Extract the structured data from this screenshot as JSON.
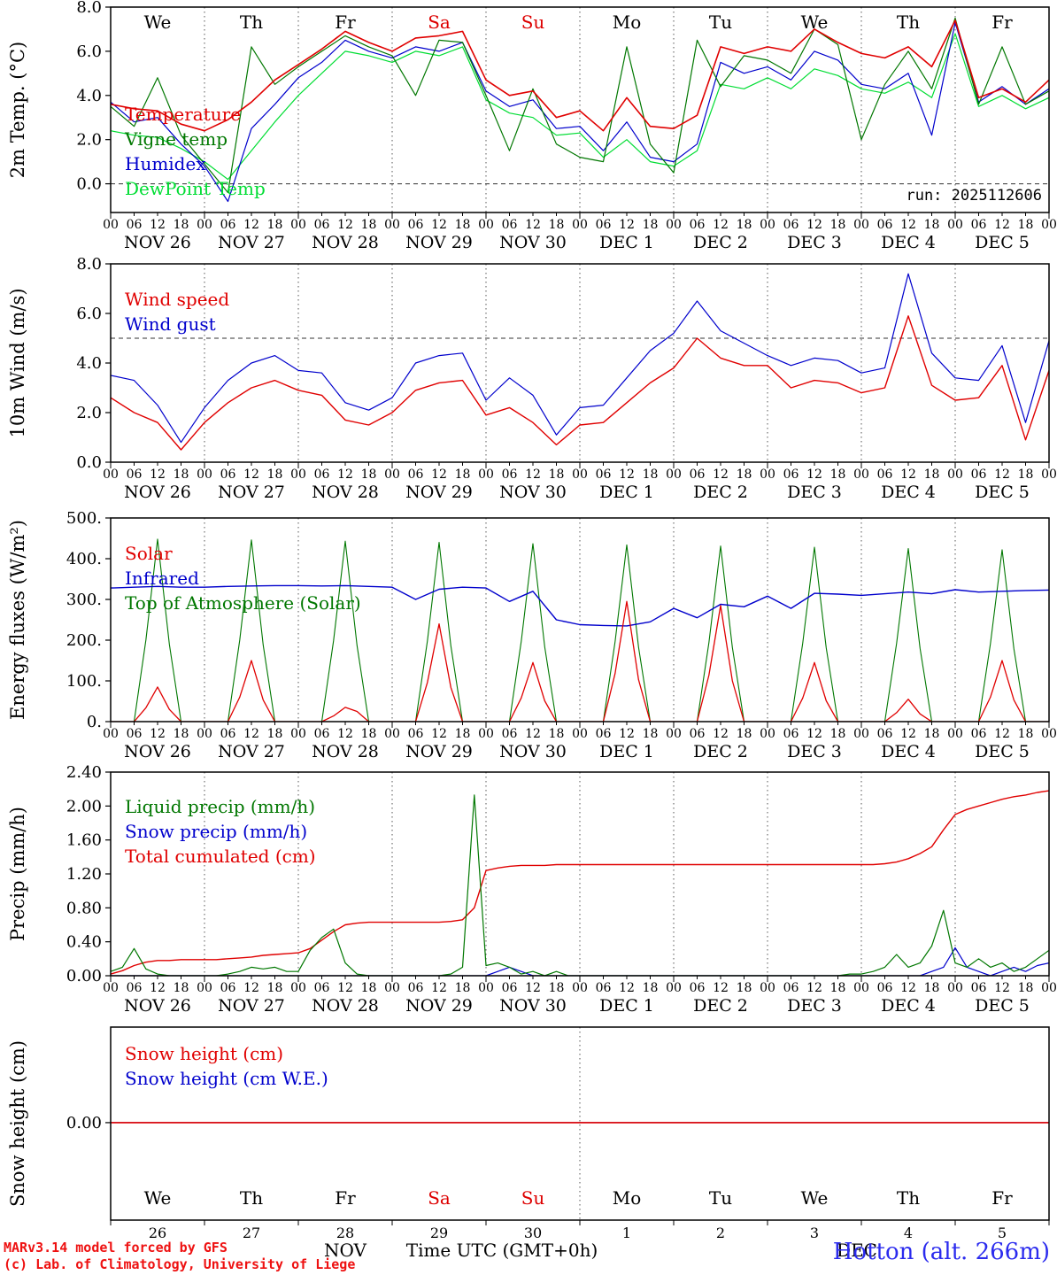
{
  "run_label": "run: 2025112606",
  "footer": {
    "model_line1": "MARv3.14 model forced by GFS",
    "model_line2": "(c) Lab. of Climatology, University of Liege",
    "station": "Hotton (alt. 266m)",
    "time_axis_label": "Time UTC (GMT+0h)",
    "month_left": "NOV",
    "month_right": "DEC",
    "accent_red": "#dd0000",
    "accent_blue": "#2b2bee"
  },
  "axis": {
    "hour_labels": [
      "00",
      "06",
      "12",
      "18"
    ],
    "end_hour_label": "00",
    "date_labels": [
      "NOV 26",
      "NOV 27",
      "NOV 28",
      "NOV 29",
      "NOV 30",
      "DEC 1",
      "DEC 2",
      "DEC 3",
      "DEC 4",
      "DEC 5"
    ],
    "day_names": [
      "We",
      "Th",
      "Fr",
      "Sa",
      "Su",
      "Mo",
      "Tu",
      "We",
      "Th",
      "Fr"
    ],
    "day_numbers": [
      "26",
      "27",
      "28",
      "29",
      "30",
      "1",
      "2",
      "3",
      "4",
      "5"
    ],
    "weekend_indices": [
      3,
      4
    ],
    "total_hours": 240
  },
  "chart_data": [
    {
      "id": "temperature",
      "type": "line",
      "ylabel": "2m Temp. (°C)",
      "ylim": [
        -1.3,
        8.0
      ],
      "yticks": [
        8,
        6,
        4,
        2,
        0
      ],
      "ytick_labels": [
        "8.0",
        "6.0",
        "4.0",
        "2.0",
        "0.0"
      ],
      "hlines": [
        0
      ],
      "grid_days": "all",
      "xaxis": "hours",
      "show_top_day_names": true,
      "show_run_label": true,
      "series": [
        {
          "name": "Temperature",
          "color": "#e00000",
          "width": 1.6,
          "step_hours": 6,
          "values": [
            3.6,
            3.4,
            3.3,
            2.7,
            2.4,
            2.9,
            3.7,
            4.7,
            5.4,
            6.1,
            6.9,
            6.4,
            6.0,
            6.6,
            6.7,
            6.9,
            4.7,
            4.0,
            4.2,
            3.0,
            3.3,
            2.4,
            3.9,
            2.6,
            2.5,
            3.1,
            6.2,
            5.9,
            6.2,
            6.0,
            7.0,
            6.4,
            5.9,
            5.7,
            6.2,
            5.3,
            7.4,
            3.9,
            4.3,
            3.7,
            4.7
          ]
        },
        {
          "name": "Vigne temp",
          "color": "#007700",
          "width": 1.2,
          "step_hours": 6,
          "values": [
            3.5,
            2.6,
            4.8,
            2.2,
            0.9,
            -0.4,
            6.2,
            4.5,
            5.3,
            6.0,
            6.7,
            6.2,
            5.8,
            4.0,
            6.5,
            6.4,
            4.0,
            1.5,
            4.3,
            1.8,
            1.2,
            1.0,
            6.2,
            1.8,
            0.5,
            6.5,
            4.4,
            5.8,
            5.6,
            5.0,
            7.0,
            6.3,
            2.0,
            4.5,
            6.0,
            4.3,
            7.5,
            3.6,
            6.2,
            3.6,
            4.2
          ]
        },
        {
          "name": "Humidex",
          "color": "#0000cc",
          "width": 1.2,
          "step_hours": 6,
          "values": [
            3.7,
            2.8,
            3.0,
            1.8,
            0.8,
            -0.8,
            2.5,
            3.6,
            4.8,
            5.5,
            6.5,
            6.0,
            5.7,
            6.2,
            6.0,
            6.4,
            4.2,
            3.5,
            3.8,
            2.5,
            2.6,
            1.5,
            2.8,
            1.2,
            1.0,
            1.8,
            5.5,
            5.0,
            5.3,
            4.7,
            6.0,
            5.6,
            4.5,
            4.3,
            5.0,
            2.2,
            7.3,
            3.7,
            4.4,
            3.6,
            4.3
          ]
        },
        {
          "name": "DewPoint Temp",
          "color": "#00dd33",
          "width": 1.2,
          "step_hours": 6,
          "values": [
            2.4,
            2.2,
            2.1,
            1.6,
            1.0,
            0.2,
            1.5,
            2.8,
            4.0,
            5.0,
            6.0,
            5.8,
            5.5,
            6.0,
            5.8,
            6.2,
            3.8,
            3.2,
            3.0,
            2.2,
            2.3,
            1.2,
            2.0,
            1.0,
            0.8,
            1.5,
            4.5,
            4.3,
            4.8,
            4.3,
            5.2,
            4.9,
            4.3,
            4.1,
            4.6,
            3.9,
            6.8,
            3.5,
            4.0,
            3.4,
            3.9
          ]
        }
      ]
    },
    {
      "id": "wind",
      "type": "line",
      "ylabel": "10m Wind (m/s)",
      "ylim": [
        0,
        8.0
      ],
      "yticks": [
        8,
        6,
        4,
        2,
        0
      ],
      "ytick_labels": [
        "8.0",
        "6.0",
        "4.0",
        "2.0",
        "0.0"
      ],
      "hlines": [
        5
      ],
      "grid_days": "all",
      "xaxis": "hours",
      "series": [
        {
          "name": "Wind speed",
          "color": "#e00000",
          "width": 1.4,
          "step_hours": 6,
          "values": [
            2.6,
            2.0,
            1.6,
            0.5,
            1.6,
            2.4,
            3.0,
            3.3,
            2.9,
            2.7,
            1.7,
            1.5,
            2.0,
            2.9,
            3.2,
            3.3,
            1.9,
            2.2,
            1.6,
            0.7,
            1.5,
            1.6,
            2.4,
            3.2,
            3.8,
            5.0,
            4.2,
            3.9,
            3.9,
            3.0,
            3.3,
            3.2,
            2.8,
            3.0,
            5.9,
            3.1,
            2.5,
            2.6,
            3.9,
            0.9,
            3.7
          ]
        },
        {
          "name": "Wind gust",
          "color": "#0000cc",
          "width": 1.2,
          "step_hours": 6,
          "values": [
            3.5,
            3.3,
            2.3,
            0.8,
            2.2,
            3.3,
            4.0,
            4.3,
            3.7,
            3.6,
            2.4,
            2.1,
            2.6,
            4.0,
            4.3,
            4.4,
            2.5,
            3.4,
            2.7,
            1.1,
            2.2,
            2.3,
            3.4,
            4.5,
            5.2,
            6.5,
            5.3,
            4.8,
            4.3,
            3.9,
            4.2,
            4.1,
            3.6,
            3.8,
            7.6,
            4.4,
            3.4,
            3.3,
            4.7,
            1.6,
            4.9
          ]
        }
      ]
    },
    {
      "id": "energy-fluxes",
      "type": "line",
      "ylabel": "Energy fluxes (W/m²)",
      "ylim": [
        0,
        500
      ],
      "yticks": [
        500,
        400,
        300,
        200,
        100,
        0
      ],
      "ytick_labels": [
        "500.",
        "400.",
        "300.",
        "200.",
        "100.",
        "0."
      ],
      "hlines": [],
      "grid_days": "all",
      "xaxis": "hours",
      "series": [
        {
          "name": "Solar",
          "color": "#e00000",
          "width": 1.3,
          "step_hours": 3,
          "values": [
            0,
            0,
            0,
            34,
            85,
            30,
            0,
            0,
            0,
            0,
            0,
            60,
            150,
            53,
            0,
            0,
            0,
            0,
            0,
            14,
            35,
            25,
            0,
            0,
            0,
            0,
            0,
            96,
            240,
            84,
            0,
            0,
            0,
            0,
            0,
            58,
            145,
            51,
            0,
            0,
            0,
            0,
            0,
            118,
            295,
            103,
            0,
            0,
            0,
            0,
            0,
            114,
            285,
            100,
            0,
            0,
            0,
            0,
            0,
            58,
            145,
            51,
            0,
            0,
            0,
            0,
            0,
            22,
            55,
            19,
            0,
            0,
            0,
            0,
            0,
            60,
            150,
            53,
            0,
            0,
            0
          ]
        },
        {
          "name": "Infrared",
          "color": "#0000cc",
          "width": 1.4,
          "step_hours": 6,
          "values": [
            328,
            330,
            332,
            330,
            330,
            332,
            333,
            334,
            334,
            333,
            334,
            332,
            330,
            300,
            325,
            330,
            328,
            295,
            320,
            250,
            238,
            236,
            235,
            245,
            278,
            255,
            288,
            282,
            308,
            278,
            315,
            313,
            310,
            314,
            318,
            314,
            324,
            318,
            320,
            322,
            323
          ]
        },
        {
          "name": "Top of Atmosphere (Solar)",
          "color": "#007700",
          "width": 1.1,
          "step_hours": 3,
          "values": [
            0,
            0,
            0,
            200,
            448,
            190,
            0,
            0,
            0,
            0,
            0,
            200,
            446,
            188,
            0,
            0,
            0,
            0,
            0,
            199,
            443,
            187,
            0,
            0,
            0,
            0,
            0,
            198,
            440,
            186,
            0,
            0,
            0,
            0,
            0,
            197,
            437,
            184,
            0,
            0,
            0,
            0,
            0,
            196,
            434,
            183,
            0,
            0,
            0,
            0,
            0,
            194,
            431,
            182,
            0,
            0,
            0,
            0,
            0,
            193,
            428,
            181,
            0,
            0,
            0,
            0,
            0,
            192,
            425,
            180,
            0,
            0,
            0,
            0,
            0,
            191,
            422,
            179,
            0,
            0,
            0
          ]
        }
      ]
    },
    {
      "id": "precip",
      "type": "line",
      "ylabel": "Precip (mm/h)",
      "ylim": [
        0,
        2.4
      ],
      "yticks": [
        2.4,
        2.0,
        1.6,
        1.2,
        0.8,
        0.4,
        0
      ],
      "ytick_labels": [
        "2.40",
        "2.00",
        "1.60",
        "1.20",
        "0.80",
        "0.40",
        "0.00"
      ],
      "hlines": [],
      "grid_days": "all",
      "xaxis": "hours",
      "series": [
        {
          "name": "Liquid precip (mm/h)",
          "color": "#007700",
          "width": 1.2,
          "step_hours": 3,
          "values": [
            0.05,
            0.1,
            0.32,
            0.08,
            0.02,
            0,
            0,
            0,
            0,
            0,
            0.02,
            0.05,
            0.1,
            0.08,
            0.1,
            0.05,
            0.05,
            0.3,
            0.45,
            0.55,
            0.15,
            0.02,
            0,
            0,
            0,
            0,
            0,
            0,
            0,
            0.02,
            0.1,
            2.13,
            0.12,
            0.15,
            0.1,
            0.02,
            0.05,
            0,
            0.05,
            0,
            0,
            0,
            0,
            0,
            0,
            0,
            0,
            0,
            0,
            0,
            0,
            0,
            0,
            0,
            0,
            0,
            0,
            0,
            0,
            0,
            0,
            0,
            0,
            0.02,
            0.02,
            0.05,
            0.1,
            0.25,
            0.1,
            0.15,
            0.35,
            0.77,
            0.15,
            0.1,
            0.2,
            0.1,
            0.15,
            0.05,
            0.1,
            0.2,
            0.3
          ]
        },
        {
          "name": "Snow precip (mm/h)",
          "color": "#0000cc",
          "width": 1.2,
          "step_hours": 3,
          "values": [
            0,
            0,
            0,
            0,
            0,
            0,
            0,
            0,
            0,
            0,
            0,
            0,
            0,
            0,
            0,
            0,
            0,
            0,
            0,
            0,
            0,
            0,
            0,
            0,
            0,
            0,
            0,
            0,
            0,
            0,
            0,
            0,
            0,
            0.05,
            0.1,
            0.05,
            0,
            0,
            0,
            0,
            0,
            0,
            0,
            0,
            0,
            0,
            0,
            0,
            0,
            0,
            0,
            0,
            0,
            0,
            0,
            0,
            0,
            0,
            0,
            0,
            0,
            0,
            0,
            0,
            0,
            0,
            0,
            0,
            0,
            0,
            0.05,
            0.1,
            0.33,
            0.1,
            0.05,
            0,
            0.05,
            0.1,
            0.05,
            0.12,
            0.15
          ]
        },
        {
          "name": "Total cumulated (cm)",
          "color": "#e00000",
          "width": 1.4,
          "step_hours": 3,
          "values": [
            0.02,
            0.06,
            0.12,
            0.16,
            0.18,
            0.18,
            0.19,
            0.19,
            0.19,
            0.19,
            0.2,
            0.21,
            0.22,
            0.24,
            0.25,
            0.26,
            0.27,
            0.32,
            0.42,
            0.52,
            0.6,
            0.62,
            0.63,
            0.63,
            0.63,
            0.63,
            0.63,
            0.63,
            0.63,
            0.64,
            0.66,
            0.8,
            1.24,
            1.27,
            1.29,
            1.3,
            1.3,
            1.3,
            1.31,
            1.31,
            1.31,
            1.31,
            1.31,
            1.31,
            1.31,
            1.31,
            1.31,
            1.31,
            1.31,
            1.31,
            1.31,
            1.31,
            1.31,
            1.31,
            1.31,
            1.31,
            1.31,
            1.31,
            1.31,
            1.31,
            1.31,
            1.31,
            1.31,
            1.31,
            1.31,
            1.31,
            1.32,
            1.34,
            1.38,
            1.44,
            1.52,
            1.72,
            1.9,
            1.96,
            2.0,
            2.04,
            2.08,
            2.11,
            2.13,
            2.16,
            2.18
          ]
        }
      ]
    },
    {
      "id": "snow-height",
      "type": "line",
      "ylabel": "Snow height (cm)",
      "ylim": [
        -1.02,
        1.0
      ],
      "yticks": [
        0
      ],
      "ytick_labels": [
        "0.00"
      ],
      "hlines": [],
      "grid_days": "single",
      "xaxis": "days",
      "series": [
        {
          "name": "Snow height (cm)",
          "color": "#e00000",
          "width": 1.6,
          "step_hours": 120,
          "values": [
            0,
            0,
            0
          ]
        },
        {
          "name": "Snow height (cm W.E.)",
          "color": "#0000cc",
          "width": 1.2,
          "step_hours": 120,
          "values": [
            0,
            0,
            0
          ]
        }
      ]
    }
  ]
}
